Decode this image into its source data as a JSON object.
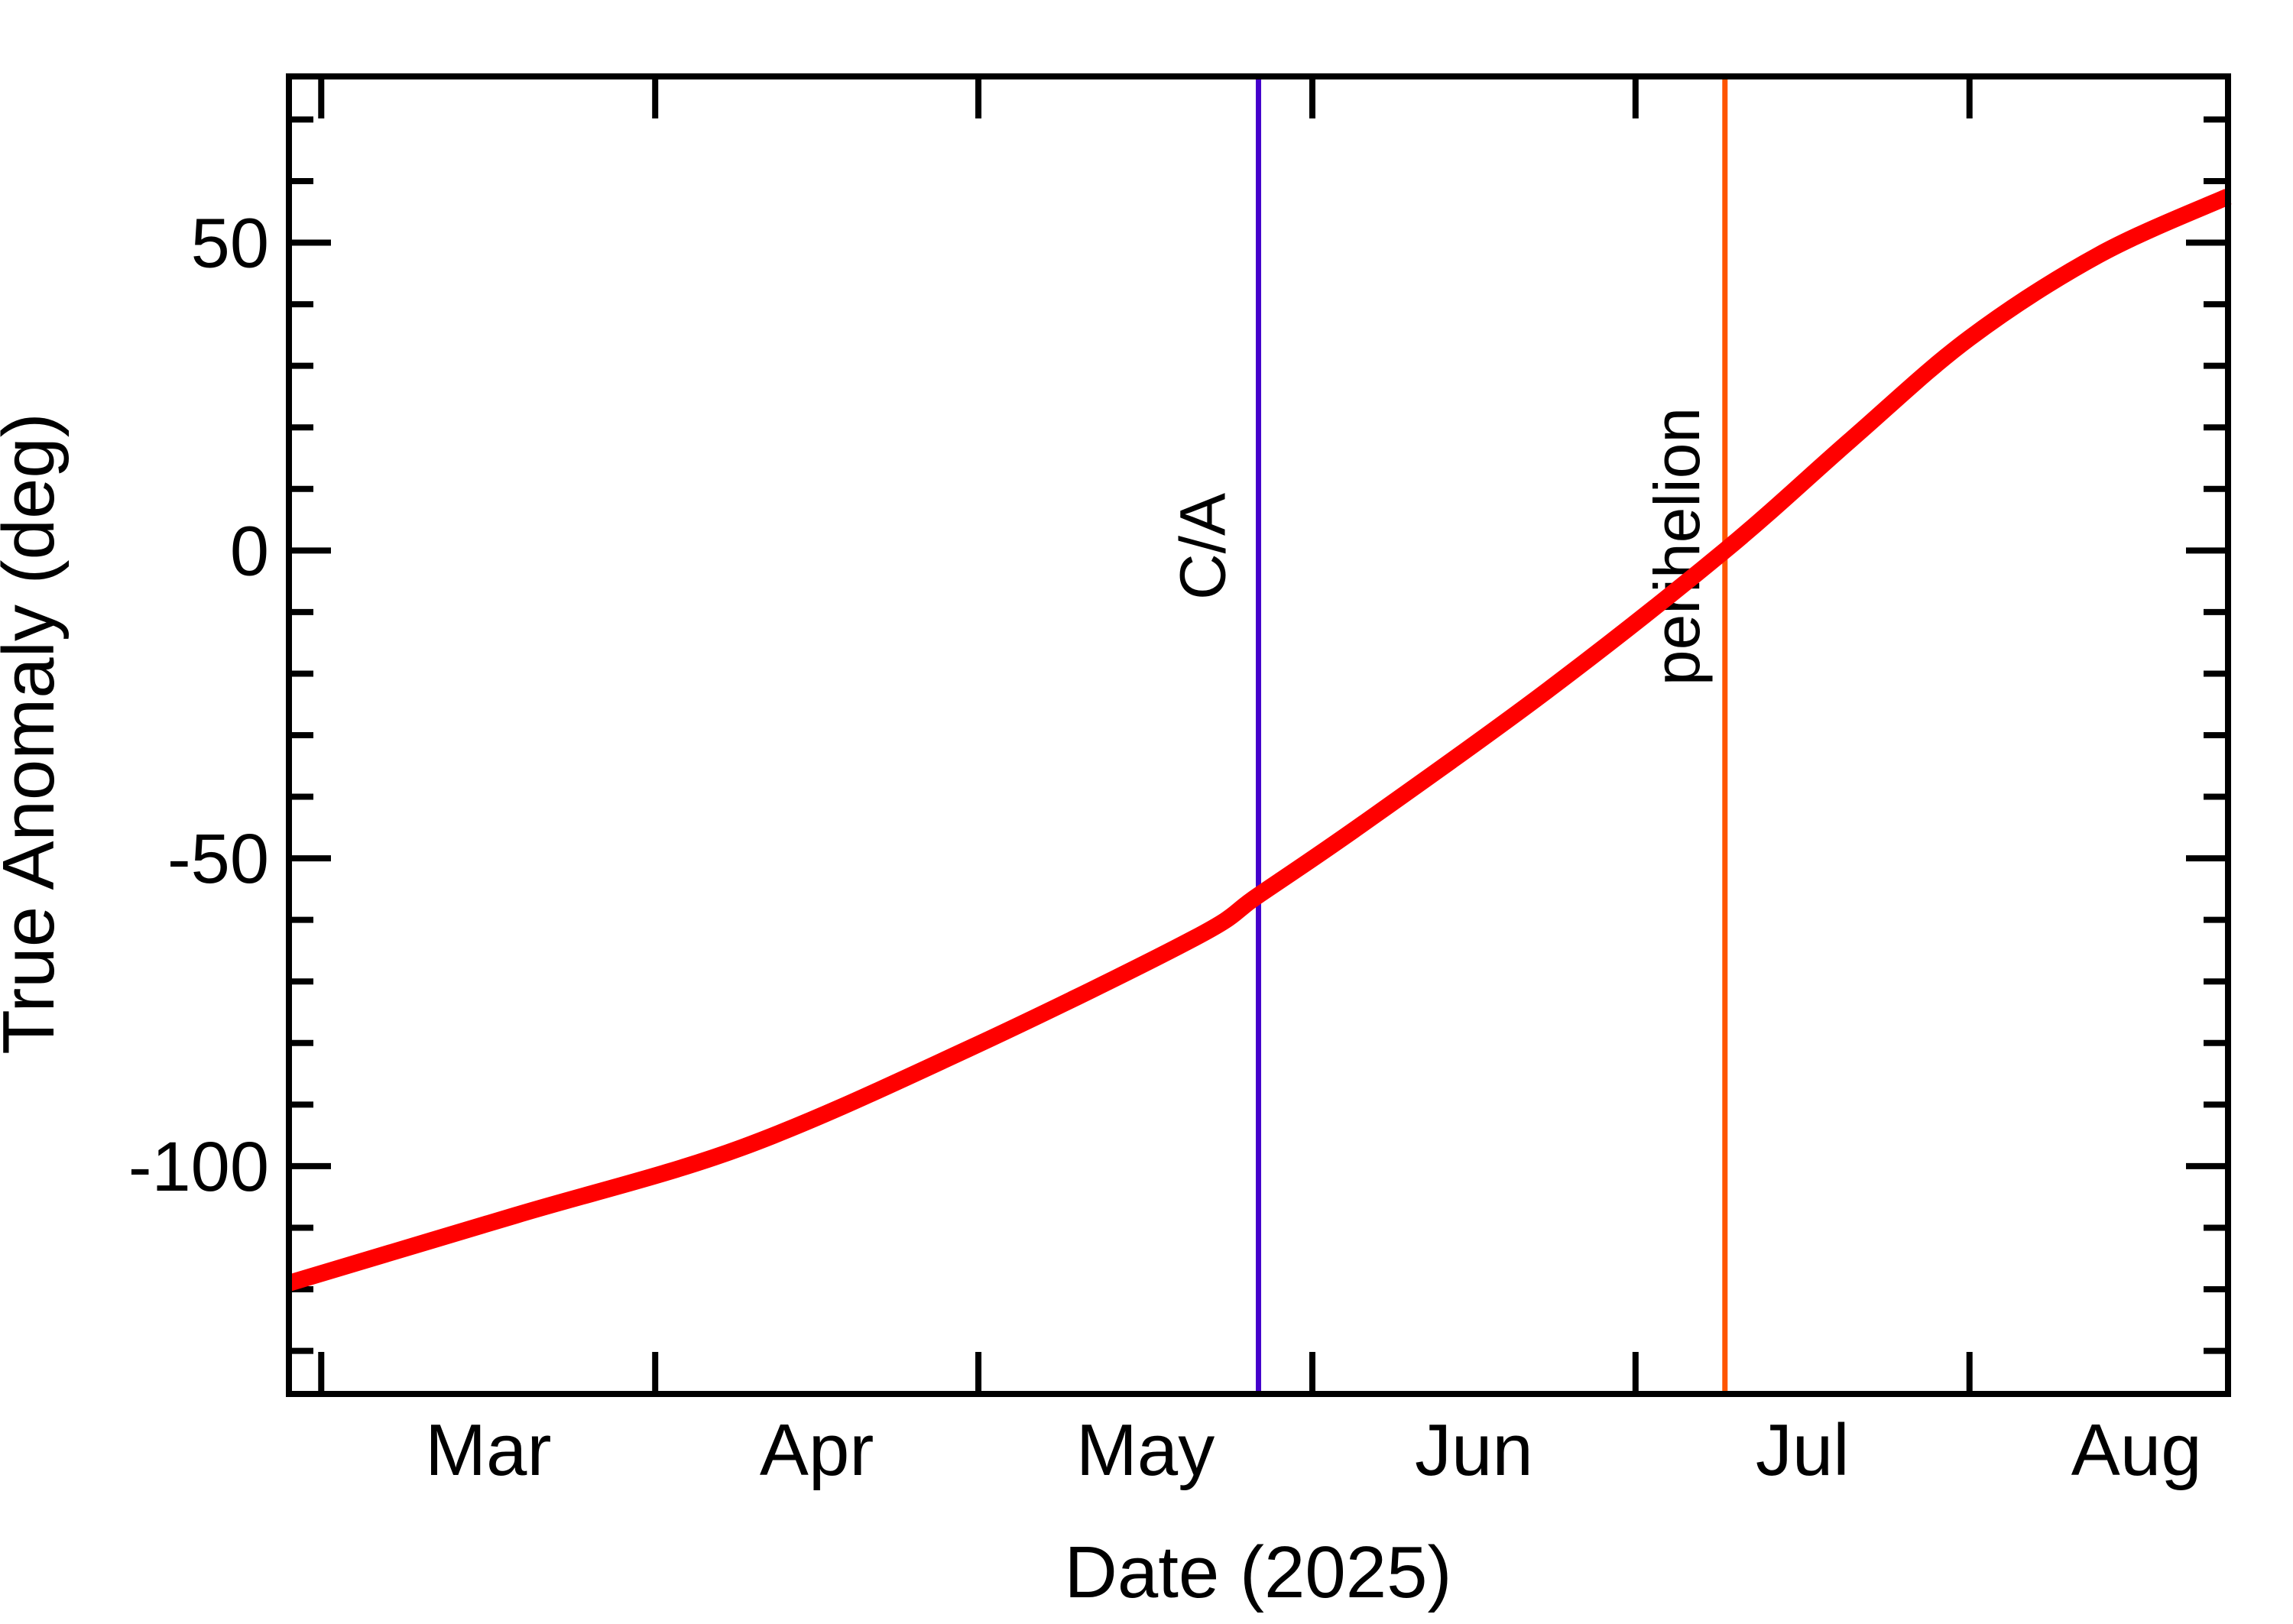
{
  "figure": {
    "background": "#ffffff",
    "frame_color": "#000000",
    "x_axis": {
      "title": "Date (2025)",
      "domain_days": [
        0,
        180
      ],
      "start_date": "2025-02-26",
      "months": [
        {
          "label": "Mar",
          "start_day": 3,
          "label_day": 18.5
        },
        {
          "label": "Apr",
          "start_day": 34,
          "label_day": 49
        },
        {
          "label": "May",
          "start_day": 64,
          "label_day": 79.5
        },
        {
          "label": "Jun",
          "start_day": 95,
          "label_day": 110
        },
        {
          "label": "Jul",
          "start_day": 125,
          "label_day": 140.5
        },
        {
          "label": "Aug",
          "start_day": 156,
          "label_day": 171.5
        }
      ]
    },
    "y_axis": {
      "title": "True Anomaly (deg)",
      "domain": [
        -137,
        77
      ],
      "major_ticks": [
        50,
        0,
        -50,
        -100
      ],
      "major_tick_labels": [
        "50",
        "0",
        "-50",
        "-100"
      ],
      "minor_step": 10
    },
    "events": [
      {
        "id": "ca",
        "label": "C/A",
        "day": 90,
        "date": "2025-05-27",
        "color": "#4400cc"
      },
      {
        "id": "perihelion",
        "label": "perihelion",
        "day": 133.3,
        "date": "2025-07-09",
        "color": "#ff5500"
      }
    ]
  },
  "chart_data": {
    "type": "line",
    "title": "",
    "xlabel": "Date (2025)",
    "ylabel": "True Anomaly (deg)",
    "x_unit": "days since 2025-02-26",
    "xlim_days": [
      0,
      180
    ],
    "ylim": [
      -137,
      77
    ],
    "x_tick_labels": [
      "Mar",
      "Apr",
      "May",
      "Jun",
      "Jul",
      "Aug"
    ],
    "y_ticks": [
      50,
      0,
      -50,
      -100
    ],
    "grid": false,
    "legend": false,
    "series": [
      {
        "name": "true anomaly",
        "color": "#ff0000",
        "points": [
          {
            "date": "2025-02-26",
            "day": 0,
            "deg": -119
          },
          {
            "date": "2025-03-19",
            "day": 21,
            "deg": -108
          },
          {
            "date": "2025-04-09",
            "day": 42,
            "deg": -97
          },
          {
            "date": "2025-04-30",
            "day": 63,
            "deg": -81
          },
          {
            "date": "2025-05-21",
            "day": 84,
            "deg": -63
          },
          {
            "date": "2025-05-27",
            "day": 90,
            "deg": -56
          },
          {
            "date": "2025-06-06",
            "day": 100,
            "deg": -44
          },
          {
            "date": "2025-06-23",
            "day": 117,
            "deg": -22.5
          },
          {
            "date": "2025-07-09",
            "day": 133.3,
            "deg": 0
          },
          {
            "date": "2025-07-21",
            "day": 145,
            "deg": 18
          },
          {
            "date": "2025-08-01",
            "day": 156,
            "deg": 34.5
          },
          {
            "date": "2025-08-13",
            "day": 168,
            "deg": 48
          },
          {
            "date": "2025-08-25",
            "day": 180,
            "deg": 57.5
          }
        ]
      }
    ],
    "annotations": [
      {
        "label": "C/A",
        "date": "2025-05-27",
        "day": 90,
        "color": "#4400cc",
        "orientation": "vertical-line"
      },
      {
        "label": "perihelion",
        "date": "2025-07-09",
        "day": 133.3,
        "color": "#ff5500",
        "orientation": "vertical-line"
      }
    ]
  }
}
